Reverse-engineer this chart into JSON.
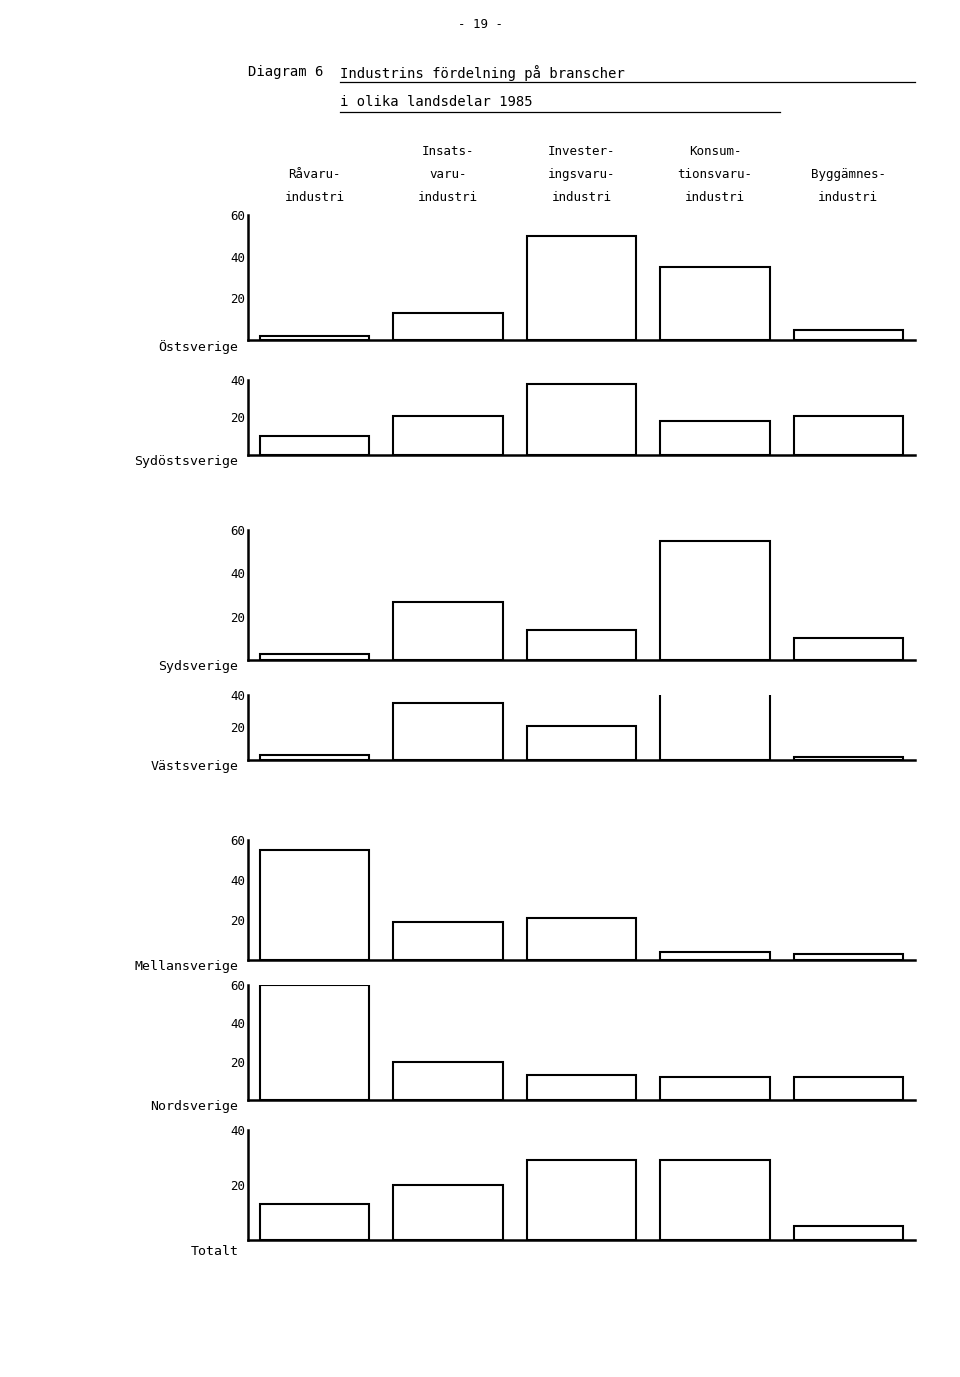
{
  "page_number": "- 19 -",
  "title_prefix": "Diagram 6",
  "title_main": "Industrins fördelning på branscher",
  "title_sub": "i olika landsdelar 1985",
  "column_headers": [
    [
      "Råvaru-",
      "industri"
    ],
    [
      "Insats-",
      "varu-",
      "industri"
    ],
    [
      "Invester-",
      "ingsvaru-",
      "industri"
    ],
    [
      "Konsum-",
      "tionsvaru-",
      "industri"
    ],
    [
      "Byggämnes-",
      "industri"
    ]
  ],
  "regions": [
    {
      "name": "Östsverige",
      "values": [
        2,
        13,
        50,
        35,
        5
      ],
      "ymax": 60,
      "yticks": [
        20,
        40,
        60
      ]
    },
    {
      "name": "Sydöstsverige",
      "values": [
        10,
        21,
        38,
        18,
        21
      ],
      "ymax": 40,
      "yticks": [
        20,
        40
      ]
    },
    {
      "name": "Sydsverige",
      "values": [
        3,
        27,
        14,
        55,
        10
      ],
      "ymax": 60,
      "yticks": [
        20,
        40,
        60
      ]
    },
    {
      "name": "Västsverige",
      "values": [
        3,
        35,
        21,
        42,
        2
      ],
      "ymax": 40,
      "yticks": [
        20,
        40
      ]
    },
    {
      "name": "Mellansverige",
      "values": [
        55,
        19,
        21,
        4,
        3
      ],
      "ymax": 60,
      "yticks": [
        20,
        40,
        60
      ]
    },
    {
      "name": "Nordsverige",
      "values": [
        60,
        20,
        13,
        12,
        12
      ],
      "ymax": 60,
      "yticks": [
        20,
        40,
        60
      ]
    },
    {
      "name": "Totalt",
      "values": [
        13,
        20,
        29,
        29,
        5
      ],
      "ymax": 40,
      "yticks": [
        20,
        40
      ]
    }
  ],
  "background_color": "#ffffff",
  "bar_color": "#ffffff",
  "bar_edgecolor": "#000000",
  "bar_linewidth": 1.5,
  "axis_linewidth": 1.8,
  "tick_fontsize": 9,
  "region_fontsize": 9.5,
  "header_fontsize": 9,
  "title_fontsize": 10,
  "num_bars": 5
}
